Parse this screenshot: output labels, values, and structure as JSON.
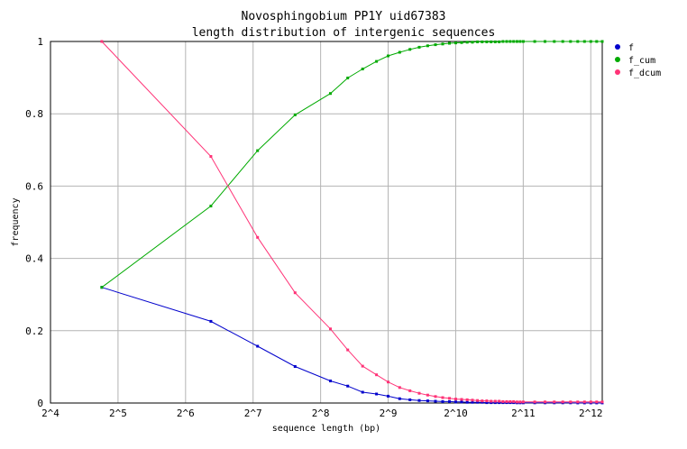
{
  "chart_data": {
    "type": "line",
    "title": "Novosphingobium PP1Y uid67383",
    "subtitle": "length distribution of intergenic sequences",
    "xlabel": "sequence length (bp)",
    "ylabel": "frequency",
    "x_scale": "log2",
    "xlim": [
      16,
      4608
    ],
    "ylim": [
      0,
      1
    ],
    "x_ticks": [
      16,
      32,
      64,
      128,
      256,
      512,
      1024,
      2048,
      4096
    ],
    "x_tick_labels": [
      "2^4",
      "2^5",
      "2^6",
      "2^7",
      "2^8",
      "2^9",
      "2^10",
      "2^11",
      "2^12"
    ],
    "y_ticks": [
      0,
      0.2,
      0.4,
      0.6,
      0.8,
      1
    ],
    "y_tick_labels": [
      "0",
      "0.2",
      "0.4",
      "0.6",
      "0.8",
      "1"
    ],
    "grid": true,
    "legend_position": "right",
    "x": [
      27.1,
      83,
      134,
      197,
      283,
      338,
      394,
      454,
      512,
      576,
      640,
      704,
      768,
      832,
      896,
      960,
      1024,
      1088,
      1152,
      1216,
      1280,
      1344,
      1408,
      1472,
      1536,
      1600,
      1664,
      1728,
      1792,
      1856,
      1920,
      1984,
      2048,
      2304,
      2560,
      2816,
      3072,
      3328,
      3584,
      3840,
      4096,
      4352,
      4608
    ],
    "series": [
      {
        "name": "f",
        "color": "#0000cc",
        "values": [
          0.32,
          0.226,
          0.157,
          0.101,
          0.061,
          0.047,
          0.03,
          0.025,
          0.019,
          0.012,
          0.009,
          0.007,
          0.006,
          0.005,
          0.004,
          0.004,
          0.003,
          0.003,
          0.002,
          0.002,
          0.002,
          0.002,
          0.001,
          0.001,
          0.001,
          0.001,
          0.001,
          0.001,
          0.001,
          0.001,
          0.0005,
          0.0005,
          0.0005,
          0.0005,
          0.0005,
          0.0004,
          0.0004,
          0.0004,
          0.0003,
          0.0003,
          0.0003,
          0.0002,
          0.0002
        ]
      },
      {
        "name": "f_cum",
        "color": "#00aa00",
        "values": [
          0.32,
          0.545,
          0.698,
          0.797,
          0.856,
          0.899,
          0.924,
          0.945,
          0.96,
          0.97,
          0.978,
          0.984,
          0.988,
          0.991,
          0.993,
          0.995,
          0.996,
          0.997,
          0.998,
          0.998,
          0.999,
          0.999,
          0.999,
          0.999,
          0.999,
          0.999,
          1.0,
          1.0,
          1.0,
          1.0,
          1.0,
          1.0,
          1.0,
          1.0,
          1.0,
          1.0,
          1.0,
          1.0,
          1.0,
          1.0,
          1.0,
          1.0,
          1.0
        ]
      },
      {
        "name": "f_dcum",
        "color": "#ff3377",
        "values": [
          1.0,
          0.682,
          0.458,
          0.305,
          0.205,
          0.147,
          0.102,
          0.078,
          0.058,
          0.043,
          0.034,
          0.027,
          0.022,
          0.018,
          0.015,
          0.013,
          0.011,
          0.01,
          0.009,
          0.008,
          0.007,
          0.006,
          0.006,
          0.005,
          0.005,
          0.005,
          0.004,
          0.004,
          0.004,
          0.004,
          0.003,
          0.003,
          0.003,
          0.003,
          0.003,
          0.003,
          0.003,
          0.003,
          0.003,
          0.003,
          0.003,
          0.003,
          0.003
        ]
      }
    ]
  }
}
